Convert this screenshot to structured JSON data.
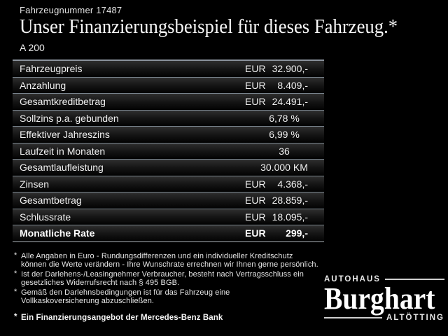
{
  "colors": {
    "background": "#000000",
    "separator": "#78828b",
    "separator_top": "#8a929b",
    "row_gradient_top": "#2e2e2e",
    "text": "#f0f0f0"
  },
  "header": {
    "vehicle_number": "Fahrzeugnummer 17487",
    "title": "Unser Finanzierungsbeispiel für dieses Fahrzeug.*",
    "model": "A 200"
  },
  "table": {
    "rows": [
      {
        "label": "Fahrzeugpreis",
        "currency": "EUR",
        "value": "32.900,-"
      },
      {
        "label": "Anzahlung",
        "currency": "EUR",
        "value": "8.409,-"
      },
      {
        "label": "Gesamtkreditbetrag",
        "currency": "EUR",
        "value": "24.491,-"
      },
      {
        "label": "Sollzins p.a. gebunden",
        "currency": "",
        "value": "6,78 %"
      },
      {
        "label": "Effektiver Jahreszins",
        "currency": "",
        "value": "6,99 %"
      },
      {
        "label": "Laufzeit in Monaten",
        "currency": "",
        "value": "36"
      },
      {
        "label": "Gesamtlaufleistung",
        "currency": "",
        "value": "30.000 KM"
      },
      {
        "label": "Zinsen",
        "currency": "EUR",
        "value": "4.368,-"
      },
      {
        "label": "Gesamtbetrag",
        "currency": "EUR",
        "value": "28.859,-"
      },
      {
        "label": "Schlussrate",
        "currency": "EUR",
        "value": "18.095,-"
      },
      {
        "label": "Monatliche Rate",
        "currency": "EUR",
        "value": "299,-"
      }
    ]
  },
  "footnotes": {
    "marker": "*",
    "items": [
      {
        "line1": "Alle Angaben in Euro - Rundungsdifferenzen und ein individueller Kreditschutz",
        "line2": "können die Werte verändern - Ihre Wunschrate errechnen wir Ihnen gerne persönlich."
      },
      {
        "line1": "Ist der Darlehens-/Leasingnehmer Verbraucher, besteht nach Vertragsschluss ein",
        "line2": "gesetzliches Widerrufsrecht nach § 495 BGB."
      },
      {
        "line1": "Gemäß den Darlehnsbedingungen ist für das Fahrzeug eine",
        "line2": "Vollkaskoversicherung abzuschließen."
      },
      {
        "line1": "Ein Finanzierungsangebot der Mercedes-Benz Bank",
        "line2": ""
      }
    ]
  },
  "dealer": {
    "prefix": "AUTOHAUS",
    "name": "Burghart",
    "city": "ALTÖTTING"
  }
}
